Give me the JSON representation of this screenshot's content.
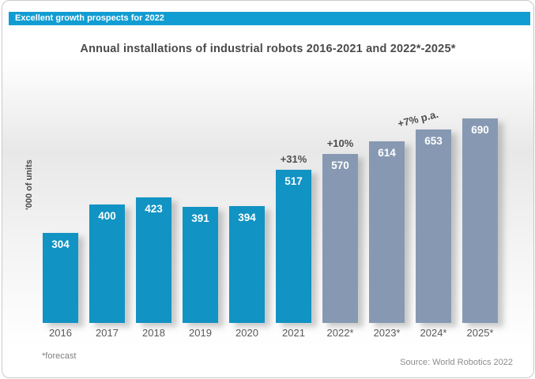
{
  "banner": {
    "text": "Excellent growth prospects for 2022",
    "bg_color": "#129DD2"
  },
  "chart_data": {
    "type": "bar",
    "title": "Annual installations of industrial robots 2016-2021 and 2022*-2025*",
    "xlabel": "",
    "ylabel": "'000 of units",
    "categories": [
      "2016",
      "2017",
      "2018",
      "2019",
      "2020",
      "2021",
      "2022*",
      "2023*",
      "2024*",
      "2025*"
    ],
    "values": [
      304,
      400,
      423,
      391,
      394,
      517,
      570,
      614,
      653,
      690
    ],
    "forecast_start_category": "2022*",
    "annotations": [
      {
        "label": "+31%",
        "category": "2021",
        "rotated": false
      },
      {
        "label": "+10%",
        "category": "2022*",
        "rotated": false
      },
      {
        "label": "+7% p.a.",
        "category": "2024*",
        "rotated": true
      }
    ],
    "colors": {
      "actual_bar": "#1193C3",
      "forecast_bar": "#8799B2",
      "value_label": "#FFFFFF",
      "annotation_text": "#4D4D4D"
    },
    "ylim": [
      0,
      760
    ],
    "grid": false,
    "legend": false
  },
  "footer": {
    "forecast_note": "*forecast",
    "source": "Source: World Robotics 2022"
  }
}
